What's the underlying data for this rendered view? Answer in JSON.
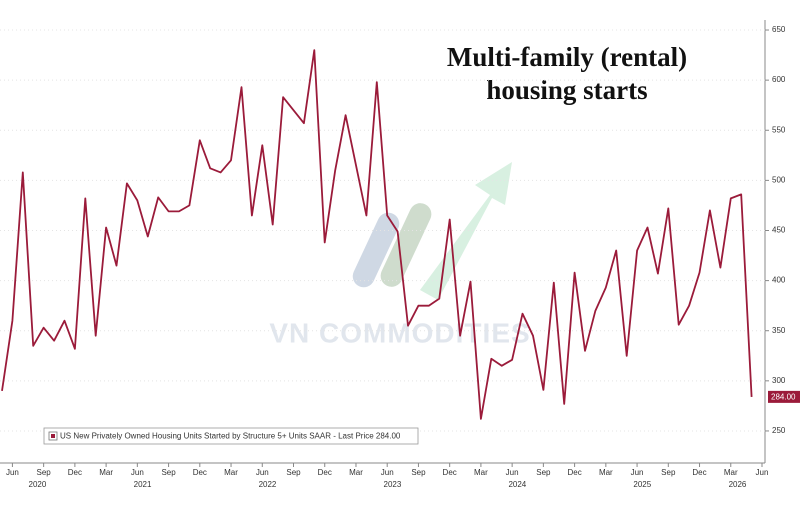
{
  "chart_data": {
    "type": "line",
    "title": [
      "Multi-family (rental)",
      "housing starts"
    ],
    "watermark": "VN COMMODITIES",
    "legend_label": "US New Privately Owned Housing Units Started by Structure 5+ Units SAAR - Last Price 284.00",
    "last_value_label": "284.00",
    "x": [
      "2020-05",
      "2020-06",
      "2020-07",
      "2020-08",
      "2020-09",
      "2020-10",
      "2020-11",
      "2020-12",
      "2021-01",
      "2021-02",
      "2021-03",
      "2021-04",
      "2021-05",
      "2021-06",
      "2021-07",
      "2021-08",
      "2021-09",
      "2021-10",
      "2021-11",
      "2021-12",
      "2022-01",
      "2022-02",
      "2022-03",
      "2022-04",
      "2022-05",
      "2022-06",
      "2022-07",
      "2022-08",
      "2022-09",
      "2022-10",
      "2022-11",
      "2022-12",
      "2023-01",
      "2023-02",
      "2023-03",
      "2023-04",
      "2023-05",
      "2023-06",
      "2023-07",
      "2023-08",
      "2023-09",
      "2023-10",
      "2023-11",
      "2023-12",
      "2024-01",
      "2024-02",
      "2024-03",
      "2024-04",
      "2024-05",
      "2024-06",
      "2024-07",
      "2024-08",
      "2024-09",
      "2024-10",
      "2024-11",
      "2024-12",
      "2025-01",
      "2025-02",
      "2025-03",
      "2025-04",
      "2025-05",
      "2025-06",
      "2025-07",
      "2025-08",
      "2025-09",
      "2025-10",
      "2025-11",
      "2025-12",
      "2026-01",
      "2026-02",
      "2026-03",
      "2026-04",
      "2026-05"
    ],
    "series": [
      {
        "name": "US New Privately Owned Housing Units Started by Structure 5+ Units SAAR",
        "color": "#9b1b3a",
        "values": [
          290,
          360,
          508,
          335,
          353,
          340,
          360,
          332,
          482,
          345,
          453,
          415,
          497,
          480,
          444,
          483,
          469,
          469,
          475,
          540,
          512,
          508,
          520,
          593,
          465,
          535,
          456,
          583,
          570,
          557,
          630,
          438,
          510,
          565,
          515,
          465,
          598,
          465,
          449,
          355,
          375,
          375,
          382,
          461,
          345,
          399,
          262,
          322,
          315,
          321,
          367,
          345,
          291,
          398,
          277,
          408,
          330,
          370,
          393,
          430,
          325,
          430,
          453,
          407,
          472,
          356,
          375,
          408,
          470,
          413,
          482,
          486,
          284
        ]
      }
    ],
    "xlim": [
      "2020-05",
      "2026-06"
    ],
    "xticks": [
      {
        "value": "2020-06",
        "label": "Jun"
      },
      {
        "value": "2020-09",
        "label": "Sep"
      },
      {
        "value": "2020-12",
        "label": "Dec"
      },
      {
        "value": "2021-03",
        "label": "Mar"
      },
      {
        "value": "2021-06",
        "label": "Jun"
      },
      {
        "value": "2021-09",
        "label": "Sep"
      },
      {
        "value": "2021-12",
        "label": "Dec"
      },
      {
        "value": "2022-03",
        "label": "Mar"
      },
      {
        "value": "2022-06",
        "label": "Jun"
      },
      {
        "value": "2022-09",
        "label": "Sep"
      },
      {
        "value": "2022-12",
        "label": "Dec"
      },
      {
        "value": "2023-03",
        "label": "Mar"
      },
      {
        "value": "2023-06",
        "label": "Jun"
      },
      {
        "value": "2023-09",
        "label": "Sep"
      },
      {
        "value": "2023-12",
        "label": "Dec"
      },
      {
        "value": "2024-03",
        "label": "Mar"
      },
      {
        "value": "2024-06",
        "label": "Jun"
      },
      {
        "value": "2024-09",
        "label": "Sep"
      },
      {
        "value": "2024-12",
        "label": "Dec"
      },
      {
        "value": "2025-03",
        "label": "Mar"
      },
      {
        "value": "2025-06",
        "label": "Jun"
      },
      {
        "value": "2025-09",
        "label": "Sep"
      },
      {
        "value": "2025-12",
        "label": "Dec"
      },
      {
        "value": "2026-03",
        "label": "Mar"
      },
      {
        "value": "2026-06",
        "label": "Jun"
      }
    ],
    "years": [
      "2020",
      "2021",
      "2022",
      "2023",
      "2024",
      "2025",
      "2026"
    ],
    "ylim": [
      230,
      660
    ],
    "yticks": [
      250,
      300,
      350,
      400,
      450,
      500,
      550,
      600,
      650
    ],
    "y_axis_side": "right",
    "legend_position": "lower left"
  }
}
